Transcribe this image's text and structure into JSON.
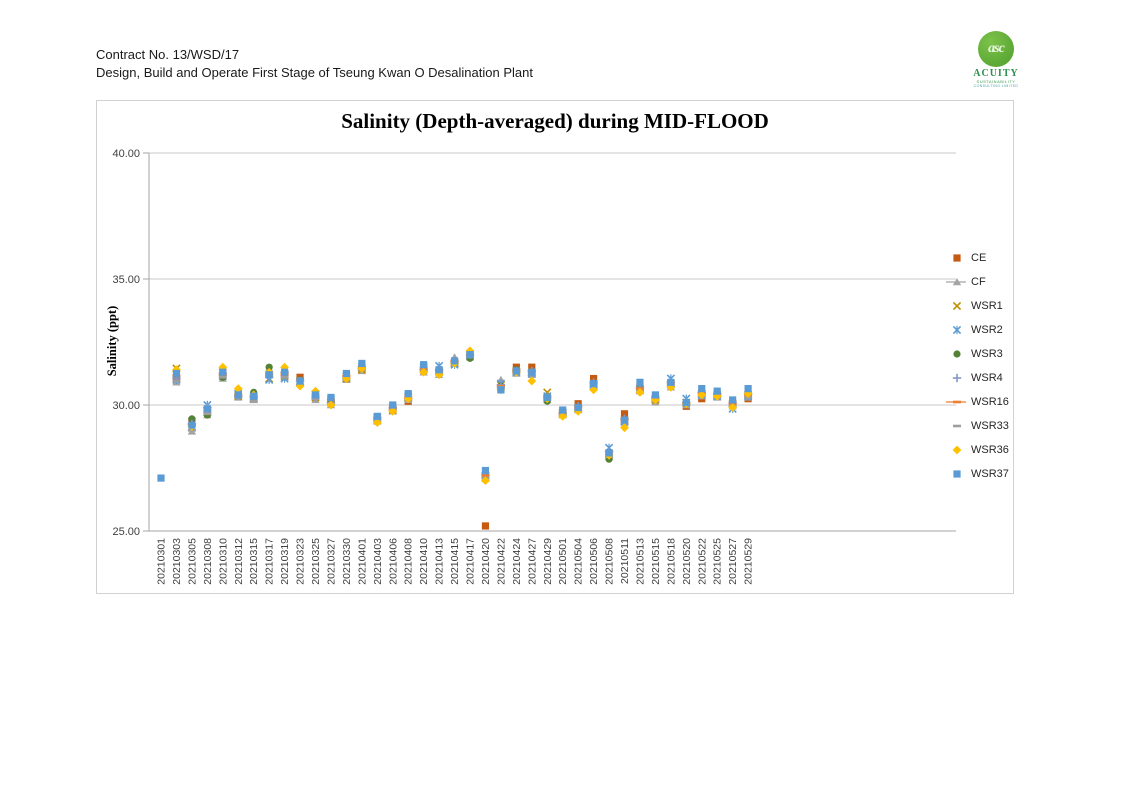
{
  "page": {
    "header_line1": "Contract No. 13/WSD/17",
    "header_line2": "Design, Build and Operate First Stage of Tseung Kwan O Desalination Plant",
    "logo": {
      "monogram": "asc",
      "name": "ACUITY",
      "subline1": "SUSTAINABILITY",
      "subline2": "CONSULTING LIMITED",
      "circle_color": "#4f9e2d",
      "name_color": "#2f8f4e"
    }
  },
  "chart_data": {
    "type": "scatter",
    "title": "Salinity (Depth-averaged) during MID-FLOOD",
    "ylabel": "Salinity (ppt)",
    "xlabel": "",
    "ylim": [
      25,
      40
    ],
    "yticks": [
      25,
      30,
      35,
      40
    ],
    "ytick_labels": [
      "25.00",
      "30.00",
      "35.00",
      "40.00"
    ],
    "grid": true,
    "legend_position": "right",
    "axis_color": "#a6a6a6",
    "grid_color": "#c9c9c9",
    "tick_label_color": "#404040",
    "categories": [
      "20210301",
      "20210303",
      "20210305",
      "20210308",
      "20210310",
      "20210312",
      "20210315",
      "20210317",
      "20210319",
      "20210323",
      "20210325",
      "20210327",
      "20210330",
      "20210401",
      "20210403",
      "20210406",
      "20210408",
      "20210410",
      "20210413",
      "20210415",
      "20210417",
      "20210420",
      "20210422",
      "20210424",
      "20210427",
      "20210429",
      "20210501",
      "20210504",
      "20210506",
      "20210508",
      "20210511",
      "20210513",
      "20210515",
      "20210518",
      "20210520",
      "20210522",
      "20210525",
      "20210527",
      "20210529"
    ],
    "series": [
      {
        "name": "CE",
        "marker": "square",
        "color": "#C55A11",
        "legend_line": false,
        "values": [
          null,
          31.1,
          29.3,
          29.8,
          31.2,
          30.4,
          30.3,
          31.2,
          31.25,
          31.1,
          30.35,
          30.15,
          31.1,
          31.45,
          29.45,
          29.85,
          30.15,
          31.45,
          31.3,
          31.7,
          31.95,
          25.2,
          30.7,
          31.5,
          31.5,
          30.3,
          29.7,
          30.05,
          31.05,
          28.1,
          29.65,
          30.7,
          30.25,
          30.8,
          29.95,
          30.25,
          30.35,
          30.0,
          30.25
        ]
      },
      {
        "name": "CF",
        "marker": "triangle",
        "color": "#A5A5A5",
        "legend_line": true,
        "values": [
          null,
          30.9,
          28.95,
          29.6,
          31.05,
          30.3,
          30.2,
          31.45,
          31.1,
          30.85,
          30.2,
          30.0,
          31.0,
          31.35,
          29.35,
          29.75,
          30.2,
          31.3,
          31.2,
          31.9,
          31.9,
          27.2,
          31.0,
          31.25,
          31.2,
          30.2,
          29.6,
          29.8,
          30.75,
          27.95,
          29.3,
          30.55,
          30.1,
          30.7,
          30.0,
          30.35,
          30.3,
          29.95,
          30.3
        ]
      },
      {
        "name": "WSR1",
        "marker": "x",
        "color": "#BF8F00",
        "legend_line": false,
        "values": [
          null,
          31.45,
          29.1,
          29.7,
          31.3,
          30.35,
          30.25,
          31.05,
          31.15,
          30.95,
          30.3,
          30.1,
          31.05,
          31.4,
          29.4,
          29.8,
          30.3,
          31.4,
          31.35,
          31.65,
          32.0,
          27.1,
          30.8,
          31.35,
          31.3,
          30.5,
          29.65,
          29.9,
          30.85,
          28.05,
          29.4,
          30.65,
          30.2,
          30.85,
          30.1,
          30.45,
          30.4,
          30.05,
          30.4
        ]
      },
      {
        "name": "WSR2",
        "marker": "star",
        "color": "#5B9BD5",
        "legend_line": false,
        "values": [
          null,
          31.0,
          29.35,
          30.0,
          31.15,
          30.45,
          30.35,
          31.0,
          31.05,
          30.9,
          30.4,
          30.2,
          31.15,
          31.5,
          29.5,
          29.9,
          30.35,
          31.5,
          31.55,
          31.6,
          31.95,
          27.2,
          30.85,
          31.3,
          31.25,
          30.35,
          29.7,
          29.85,
          30.8,
          28.3,
          29.35,
          30.6,
          30.25,
          31.05,
          30.25,
          30.4,
          30.35,
          29.85,
          30.35
        ]
      },
      {
        "name": "WSR3",
        "marker": "circle",
        "color": "#538135",
        "legend_line": false,
        "values": [
          null,
          31.2,
          29.45,
          29.6,
          31.1,
          30.4,
          30.5,
          31.5,
          31.2,
          31.0,
          30.35,
          30.15,
          31.1,
          31.5,
          29.45,
          29.85,
          30.3,
          31.45,
          31.3,
          31.75,
          31.85,
          27.15,
          30.75,
          31.4,
          31.3,
          30.15,
          29.65,
          29.9,
          30.85,
          27.85,
          29.4,
          30.65,
          30.2,
          30.8,
          30.05,
          30.45,
          30.4,
          30.0,
          30.4
        ]
      },
      {
        "name": "WSR4",
        "marker": "plus",
        "color": "#8497CB",
        "legend_line": false,
        "values": [
          null,
          31.05,
          29.25,
          29.9,
          31.25,
          30.35,
          30.3,
          31.1,
          31.3,
          30.95,
          30.3,
          30.1,
          31.05,
          31.45,
          29.5,
          29.9,
          30.25,
          31.4,
          31.4,
          31.7,
          32.0,
          27.25,
          30.8,
          31.35,
          31.35,
          30.3,
          29.7,
          29.95,
          30.9,
          28.15,
          29.45,
          30.7,
          30.3,
          30.9,
          30.1,
          30.5,
          30.45,
          30.1,
          30.45
        ]
      },
      {
        "name": "WSR16",
        "marker": "dash",
        "color": "#ED7D31",
        "legend_line": true,
        "values": [
          null,
          31.15,
          29.2,
          29.75,
          31.2,
          30.4,
          30.35,
          31.25,
          31.2,
          31.05,
          30.4,
          30.2,
          31.15,
          31.5,
          29.45,
          29.85,
          30.3,
          31.45,
          31.35,
          31.75,
          31.95,
          27.2,
          30.75,
          31.4,
          31.3,
          30.35,
          29.65,
          29.9,
          30.85,
          28.05,
          29.4,
          30.65,
          30.25,
          30.85,
          30.05,
          30.45,
          30.4,
          30.05,
          30.4
        ]
      },
      {
        "name": "WSR33",
        "marker": "dash",
        "color": "#9E9E9E",
        "legend_line": false,
        "values": [
          null,
          30.95,
          29.0,
          29.65,
          31.1,
          30.3,
          30.15,
          31.15,
          31.1,
          30.8,
          30.25,
          30.05,
          31.0,
          31.4,
          29.4,
          29.8,
          30.2,
          31.35,
          31.25,
          31.6,
          31.9,
          27.1,
          30.7,
          31.3,
          31.2,
          30.2,
          29.6,
          29.8,
          30.75,
          27.95,
          29.3,
          30.55,
          30.15,
          30.75,
          30.0,
          30.35,
          30.3,
          29.95,
          30.3
        ]
      },
      {
        "name": "WSR36",
        "marker": "diamond",
        "color": "#FFC000",
        "legend_line": false,
        "values": [
          null,
          31.4,
          29.15,
          29.85,
          31.5,
          30.65,
          30.4,
          31.3,
          31.5,
          30.75,
          30.55,
          30.0,
          31.05,
          31.45,
          29.3,
          29.75,
          30.25,
          31.3,
          31.2,
          31.65,
          32.15,
          27.0,
          30.6,
          31.3,
          30.95,
          30.25,
          29.55,
          29.75,
          30.6,
          28.0,
          29.1,
          30.5,
          30.2,
          30.7,
          30.05,
          30.4,
          30.35,
          29.9,
          30.45
        ]
      },
      {
        "name": "WSR37",
        "marker": "square",
        "color": "#5B9BD5",
        "legend_line": false,
        "values": [
          27.1,
          31.25,
          29.2,
          29.85,
          31.3,
          30.4,
          30.35,
          31.2,
          31.3,
          30.95,
          30.4,
          30.3,
          31.25,
          31.65,
          29.55,
          30.0,
          30.45,
          31.6,
          31.4,
          31.75,
          32.0,
          27.4,
          30.6,
          31.35,
          31.3,
          30.3,
          29.8,
          29.9,
          30.85,
          28.1,
          29.4,
          30.9,
          30.4,
          30.9,
          30.1,
          30.65,
          30.55,
          30.2,
          30.65
        ]
      }
    ]
  }
}
